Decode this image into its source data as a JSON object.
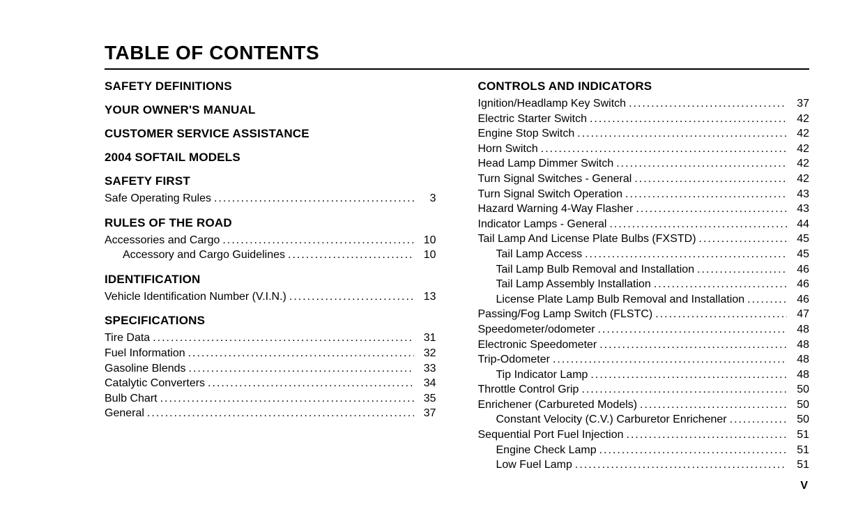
{
  "title": "TABLE OF CONTENTS",
  "page_marker": "V",
  "columns": [
    {
      "sections": [
        {
          "heading": "SAFETY DEFINITIONS",
          "entries": []
        },
        {
          "heading": "YOUR OWNER'S MANUAL",
          "entries": []
        },
        {
          "heading": "CUSTOMER SERVICE ASSISTANCE",
          "entries": []
        },
        {
          "heading": "2004 SOFTAIL MODELS",
          "entries": []
        },
        {
          "heading": "SAFETY FIRST",
          "entries": [
            {
              "label": "Safe Operating Rules",
              "page": "3",
              "indent": 0
            }
          ]
        },
        {
          "heading": "RULES OF THE ROAD",
          "entries": [
            {
              "label": "Accessories and Cargo",
              "page": "10",
              "indent": 0
            },
            {
              "label": "Accessory and Cargo Guidelines",
              "page": "10",
              "indent": 1
            }
          ]
        },
        {
          "heading": "IDENTIFICATION",
          "entries": [
            {
              "label": "Vehicle Identification Number (V.I.N.)",
              "page": "13",
              "indent": 0
            }
          ]
        },
        {
          "heading": "SPECIFICATIONS",
          "entries": [
            {
              "label": "Tire Data",
              "page": "31",
              "indent": 0
            },
            {
              "label": "Fuel Information",
              "page": "32",
              "indent": 0
            },
            {
              "label": "Gasoline Blends",
              "page": "33",
              "indent": 0
            },
            {
              "label": "Catalytic Converters",
              "page": "34",
              "indent": 0
            },
            {
              "label": "Bulb Chart",
              "page": "35",
              "indent": 0
            },
            {
              "label": "General",
              "page": "37",
              "indent": 0
            }
          ]
        }
      ]
    },
    {
      "sections": [
        {
          "heading": "CONTROLS AND INDICATORS",
          "entries": [
            {
              "label": "Ignition/Headlamp Key Switch",
              "page": "37",
              "indent": 0
            },
            {
              "label": "Electric Starter Switch",
              "page": "42",
              "indent": 0
            },
            {
              "label": "Engine Stop Switch",
              "page": "42",
              "indent": 0
            },
            {
              "label": "Horn Switch",
              "page": "42",
              "indent": 0
            },
            {
              "label": "Head Lamp Dimmer Switch",
              "page": "42",
              "indent": 0
            },
            {
              "label": "Turn Signal Switches - General",
              "page": "42",
              "indent": 0
            },
            {
              "label": "Turn Signal Switch Operation",
              "page": "43",
              "indent": 0
            },
            {
              "label": "Hazard Warning 4-Way Flasher",
              "page": "43",
              "indent": 0
            },
            {
              "label": "Indicator Lamps - General",
              "page": "44",
              "indent": 0
            },
            {
              "label": "Tail Lamp And License Plate Bulbs (FXSTD)",
              "page": "45",
              "indent": 0
            },
            {
              "label": "Tail Lamp Access",
              "page": "45",
              "indent": 1
            },
            {
              "label": "Tail Lamp Bulb Removal and Installation",
              "page": "46",
              "indent": 1
            },
            {
              "label": "Tail Lamp Assembly Installation",
              "page": "46",
              "indent": 1
            },
            {
              "label": "License Plate Lamp Bulb Removal and Installation",
              "page": "46",
              "indent": 1
            },
            {
              "label": "Passing/Fog Lamp Switch (FLSTC)",
              "page": "47",
              "indent": 0
            },
            {
              "label": "Speedometer/odometer",
              "page": "48",
              "indent": 0
            },
            {
              "label": "Electronic Speedometer",
              "page": "48",
              "indent": 0
            },
            {
              "label": "Trip-Odometer",
              "page": "48",
              "indent": 0
            },
            {
              "label": "Tip Indicator Lamp",
              "page": "48",
              "indent": 1
            },
            {
              "label": "Throttle Control Grip",
              "page": "50",
              "indent": 0
            },
            {
              "label": "Enrichener (Carbureted Models)",
              "page": "50",
              "indent": 0
            },
            {
              "label": "Constant Velocity (C.V.) Carburetor Enrichener",
              "page": "50",
              "indent": 1
            },
            {
              "label": "Sequential Port Fuel Injection",
              "page": "51",
              "indent": 0
            },
            {
              "label": "Engine Check Lamp",
              "page": "51",
              "indent": 1
            },
            {
              "label": "Low Fuel Lamp",
              "page": "51",
              "indent": 1
            }
          ]
        }
      ]
    }
  ]
}
